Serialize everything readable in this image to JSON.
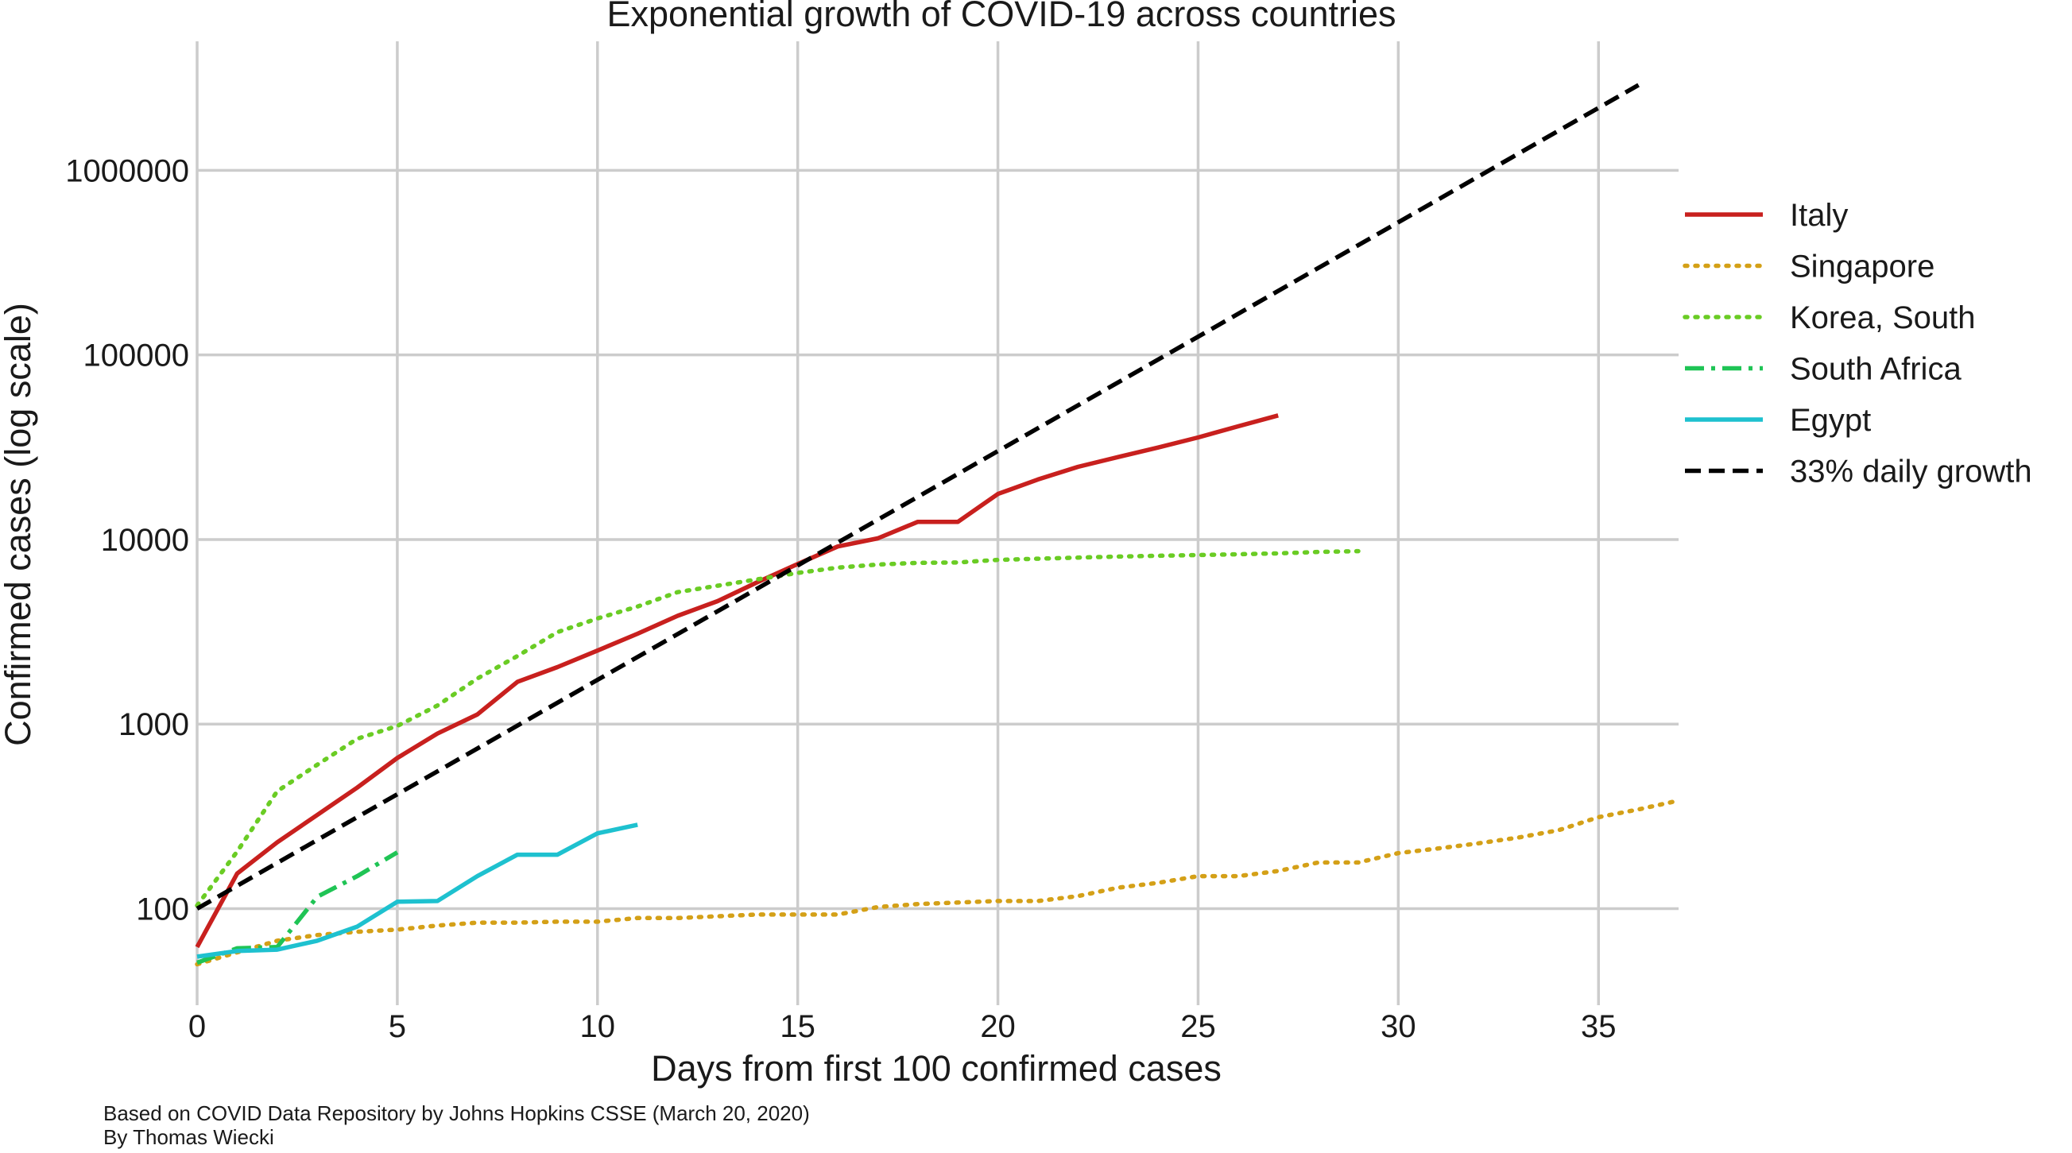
{
  "chart_data": {
    "type": "line",
    "title": "Exponential growth of COVID-19 across countries",
    "xlabel": "Days from first 100 confirmed cases",
    "ylabel": "Confirmed cases (log scale)",
    "x_scale": "linear",
    "y_scale": "log",
    "xlim": [
      0,
      37
    ],
    "ylim": [
      30,
      5000000
    ],
    "xticks": [
      0,
      5,
      10,
      15,
      20,
      25,
      30,
      35
    ],
    "yticks": [
      {
        "value": 100,
        "label": "100"
      },
      {
        "value": 1000,
        "label": "1000"
      },
      {
        "value": 10000,
        "label": "10000"
      },
      {
        "value": 100000,
        "label": "100000"
      },
      {
        "value": 1000000,
        "label": "1000000"
      }
    ],
    "grid": true,
    "legend_position": "right, outside plot",
    "series": [
      {
        "name": "Italy",
        "color": "#c8201e",
        "dash": "solid",
        "x": [
          0,
          1,
          2,
          3,
          4,
          5,
          6,
          7,
          8,
          9,
          10,
          11,
          12,
          13,
          14,
          15,
          16,
          17,
          18,
          19,
          20,
          21,
          22,
          23,
          24,
          25,
          26,
          27
        ],
        "y": [
          62,
          155,
          229,
          322,
          453,
          655,
          888,
          1128,
          1694,
          2036,
          2502,
          3089,
          3858,
          4636,
          5883,
          7375,
          9172,
          10149,
          12462,
          12462,
          17660,
          21157,
          24747,
          27980,
          31506,
          35713,
          41035,
          47021
        ]
      },
      {
        "name": "Singapore",
        "color": "#d4a017",
        "dash": "dotted",
        "x": [
          0,
          1,
          2,
          3,
          4,
          5,
          6,
          7,
          8,
          9,
          10,
          11,
          12,
          13,
          14,
          15,
          16,
          17,
          18,
          19,
          20,
          21,
          22,
          23,
          24,
          25,
          26,
          27,
          28,
          29,
          30,
          31,
          32,
          33,
          34,
          35,
          36,
          37
        ],
        "y": [
          50,
          58,
          67,
          72,
          75,
          77,
          81,
          84,
          84,
          85,
          85,
          89,
          89,
          91,
          93,
          93,
          93,
          102,
          106,
          108,
          110,
          110,
          117,
          130,
          138,
          150,
          150,
          160,
          178,
          178,
          200,
          212,
          226,
          243,
          266,
          313,
          345,
          385
        ]
      },
      {
        "name": "Korea, South",
        "color": "#6acc24",
        "dash": "dotted",
        "x": [
          0,
          1,
          2,
          3,
          4,
          5,
          6,
          7,
          8,
          9,
          10,
          11,
          12,
          13,
          14,
          15,
          16,
          17,
          18,
          19,
          20,
          21,
          22,
          23,
          24,
          25,
          26,
          27,
          28,
          29
        ],
        "y": [
          104,
          204,
          433,
          602,
          833,
          977,
          1261,
          1766,
          2337,
          3150,
          3736,
          4335,
          5186,
          5621,
          6088,
          6593,
          7041,
          7314,
          7478,
          7513,
          7755,
          7869,
          7979,
          8086,
          8162,
          8236,
          8320,
          8413,
          8565,
          8652
        ]
      },
      {
        "name": "South Africa",
        "color": "#1fc455",
        "dash": "dashdot",
        "x": [
          0,
          1,
          2,
          3,
          4,
          5
        ],
        "y": [
          51,
          61,
          62,
          116,
          150,
          202
        ]
      },
      {
        "name": "Egypt",
        "color": "#1ec1cf",
        "dash": "solid",
        "x": [
          0,
          1,
          2,
          3,
          4,
          5,
          6,
          7,
          8,
          9,
          10,
          11
        ],
        "y": [
          55,
          59,
          60,
          67,
          80,
          109,
          110,
          150,
          196,
          196,
          256,
          285
        ]
      },
      {
        "name": "33% daily growth",
        "color": "#000000",
        "dash": "dashed",
        "x": [
          0,
          36
        ],
        "y": [
          100,
          2900000
        ]
      }
    ]
  },
  "notes": {
    "source": "Based on COVID Data Repository by Johns Hopkins CSSE (March 20, 2020)",
    "author": "By Thomas Wiecki"
  }
}
